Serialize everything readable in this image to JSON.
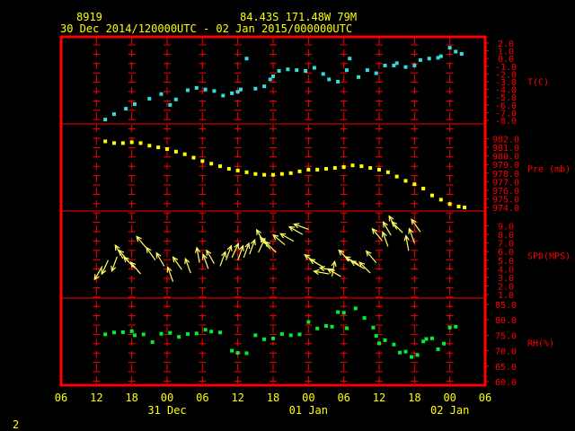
{
  "header": {
    "station_id": "8919",
    "location": "84.43S  171.48W    79M",
    "period": "30 Dec 2014/120000UTC - 02 Jan 2015/000000UTC"
  },
  "footer": {
    "page_number": "2"
  },
  "colors": {
    "background": "#000000",
    "frame": "#ff0000",
    "axis_text": "#ffff00",
    "panel_labels": "#ff0000",
    "temperature": "#33dddd",
    "pressure": "#ffff00",
    "wind": "#ffff66",
    "humidity": "#00ee33"
  },
  "chart_data": {
    "type": "multi-panel time series",
    "x_axis": {
      "unit": "hours since 30 Dec 2014 00 UTC (axis labelled in UTC hour)",
      "range": [
        6,
        78
      ],
      "tick_labels": [
        "06",
        "12",
        "18",
        "00",
        "06",
        "12",
        "18",
        "00",
        "06",
        "12",
        "18",
        "00",
        "06"
      ],
      "date_labels": [
        {
          "text": "31 Dec",
          "hour": 24
        },
        {
          "text": "01 Jan",
          "hour": 48
        },
        {
          "text": "02 Jan",
          "hour": 72
        }
      ],
      "grid": true
    },
    "panels": [
      {
        "key": "temperature",
        "label": "T(C)",
        "ylim": [
          -8,
          2
        ],
        "tick_labels": [
          "2.0",
          "1.0",
          "0.0",
          "-1.0",
          "-2.0",
          "-3.0",
          "-4.0",
          "-5.0",
          "-6.0",
          "-7.0",
          "-8.0"
        ],
        "points": [
          [
            13.5,
            -7.9
          ],
          [
            15,
            -7.2
          ],
          [
            17,
            -6.5
          ],
          [
            18.5,
            -5.9
          ],
          [
            21,
            -5.2
          ],
          [
            23,
            -4.6
          ],
          [
            24.5,
            -6.0
          ],
          [
            25.5,
            -5.3
          ],
          [
            27.5,
            -4.1
          ],
          [
            29,
            -3.8
          ],
          [
            30.5,
            -4.0
          ],
          [
            32,
            -4.2
          ],
          [
            33.5,
            -4.8
          ],
          [
            35,
            -4.5
          ],
          [
            36,
            -4.3
          ],
          [
            36.5,
            -4.0
          ],
          [
            37.5,
            0.0
          ],
          [
            39,
            -3.9
          ],
          [
            40.5,
            -3.6
          ],
          [
            41.5,
            -2.7
          ],
          [
            42,
            -2.3
          ],
          [
            43,
            -1.6
          ],
          [
            44.5,
            -1.4
          ],
          [
            46,
            -1.5
          ],
          [
            47.5,
            -1.6
          ],
          [
            49,
            -1.2
          ],
          [
            50.5,
            -2.0
          ],
          [
            51.5,
            -2.7
          ],
          [
            53,
            -3.0
          ],
          [
            54.5,
            -1.5
          ],
          [
            55,
            0.0
          ],
          [
            56.5,
            -2.4
          ],
          [
            58,
            -1.5
          ],
          [
            59.5,
            -1.9
          ],
          [
            61,
            -0.9
          ],
          [
            62.5,
            -0.9
          ],
          [
            63,
            -0.6
          ],
          [
            64.5,
            -1.1
          ],
          [
            66,
            -0.9
          ],
          [
            67,
            -0.2
          ],
          [
            68.5,
            0.0
          ],
          [
            70,
            0.1
          ],
          [
            70.5,
            0.3
          ],
          [
            72,
            1.4
          ],
          [
            73,
            0.9
          ],
          [
            74,
            0.6
          ]
        ]
      },
      {
        "key": "pressure",
        "label": "Pre (mb)",
        "ylim": [
          974,
          983
        ],
        "tick_labels": [
          "982.0",
          "981.0",
          "980.0",
          "979.0",
          "978.0",
          "977.0",
          "976.0",
          "975.0",
          "974.0"
        ],
        "points": [
          [
            13.5,
            981.7
          ],
          [
            15,
            981.5
          ],
          [
            16.5,
            981.5
          ],
          [
            18,
            981.6
          ],
          [
            19.5,
            981.5
          ],
          [
            21,
            981.2
          ],
          [
            22.5,
            981.0
          ],
          [
            24,
            980.8
          ],
          [
            25.5,
            980.5
          ],
          [
            27,
            980.2
          ],
          [
            28.5,
            979.8
          ],
          [
            30,
            979.4
          ],
          [
            31.5,
            979.1
          ],
          [
            33,
            978.8
          ],
          [
            34.5,
            978.5
          ],
          [
            36,
            978.3
          ],
          [
            37.5,
            978.1
          ],
          [
            39,
            977.9
          ],
          [
            40.5,
            977.8
          ],
          [
            42,
            977.8
          ],
          [
            43.5,
            977.9
          ],
          [
            45,
            978.0
          ],
          [
            46.5,
            978.2
          ],
          [
            48,
            978.4
          ],
          [
            49.5,
            978.4
          ],
          [
            51,
            978.5
          ],
          [
            52.5,
            978.6
          ],
          [
            54,
            978.7
          ],
          [
            55.5,
            978.9
          ],
          [
            57,
            978.8
          ],
          [
            58.5,
            978.6
          ],
          [
            60,
            978.4
          ],
          [
            61.5,
            978.1
          ],
          [
            63,
            977.6
          ],
          [
            64.5,
            977.1
          ],
          [
            66,
            976.7
          ],
          [
            67.5,
            976.2
          ],
          [
            69,
            975.4
          ],
          [
            70.5,
            974.9
          ],
          [
            72,
            974.4
          ],
          [
            73.5,
            974.1
          ],
          [
            74.5,
            974.0
          ]
        ]
      },
      {
        "key": "wind",
        "label": "SPD(MPS)",
        "ylim": [
          1,
          10
        ],
        "tick_labels": [
          "9.0",
          "8.0",
          "7.0",
          "6.0",
          "5.0",
          "4.0",
          "3.0",
          "2.0",
          "1.0"
        ],
        "points": [
          [
            13,
            4.3,
            210
          ],
          [
            14,
            5.0,
            205
          ],
          [
            15.5,
            5.4,
            200
          ],
          [
            16.5,
            5.2,
            330
          ],
          [
            17.5,
            4.8,
            320
          ],
          [
            18.5,
            4.1,
            315
          ],
          [
            19.5,
            3.4,
            320
          ],
          [
            20.5,
            6.4,
            320
          ],
          [
            22,
            5.0,
            325
          ],
          [
            23.5,
            4.3,
            330
          ],
          [
            25,
            2.5,
            340
          ],
          [
            26.5,
            3.9,
            325
          ],
          [
            28,
            3.5,
            340
          ],
          [
            29.5,
            4.7,
            350
          ],
          [
            31,
            4.0,
            340
          ],
          [
            32,
            4.6,
            330
          ],
          [
            33,
            4.3,
            20
          ],
          [
            34,
            5.0,
            20
          ],
          [
            35,
            5.3,
            25
          ],
          [
            36,
            5.0,
            20
          ],
          [
            37,
            5.3,
            20
          ],
          [
            38,
            5.7,
            20
          ],
          [
            39.5,
            5.9,
            25
          ],
          [
            40.5,
            7.0,
            330
          ],
          [
            41.5,
            6.3,
            320
          ],
          [
            42.5,
            5.9,
            315
          ],
          [
            44,
            6.8,
            310
          ],
          [
            45.5,
            7.2,
            300
          ],
          [
            47,
            8.0,
            300
          ],
          [
            48,
            8.6,
            290
          ],
          [
            49.5,
            4.6,
            305
          ],
          [
            50.5,
            4.2,
            300
          ],
          [
            51.5,
            3.4,
            280
          ],
          [
            52,
            3.1,
            10
          ],
          [
            52.5,
            3.8,
            280
          ],
          [
            53.5,
            3.1,
            300
          ],
          [
            55,
            4.9,
            315
          ],
          [
            56.5,
            4.5,
            300
          ],
          [
            57.5,
            4.0,
            300
          ],
          [
            58.5,
            3.5,
            315
          ],
          [
            59.5,
            4.7,
            320
          ],
          [
            60.5,
            7.3,
            320
          ],
          [
            61.5,
            6.6,
            340
          ],
          [
            62,
            7.9,
            330
          ],
          [
            63,
            8.6,
            330
          ],
          [
            64,
            8.2,
            315
          ],
          [
            65,
            6.1,
            350
          ],
          [
            66,
            7.0,
            340
          ],
          [
            67,
            8.3,
            325
          ]
        ]
      },
      {
        "key": "humidity",
        "label": "RH(%)",
        "ylim": [
          60,
          85
        ],
        "tick_labels": [
          "85.0",
          "80.0",
          "75.0",
          "70.0",
          "65.0",
          "60.0"
        ],
        "points": [
          [
            13.5,
            75.3
          ],
          [
            15,
            75.9
          ],
          [
            16.5,
            76.0
          ],
          [
            18,
            76.3
          ],
          [
            18.5,
            75.0
          ],
          [
            20,
            75.3
          ],
          [
            21.5,
            72.8
          ],
          [
            23,
            75.5
          ],
          [
            24.5,
            75.8
          ],
          [
            26,
            74.5
          ],
          [
            27.5,
            75.4
          ],
          [
            29,
            75.6
          ],
          [
            30.5,
            76.8
          ],
          [
            31.5,
            76.2
          ],
          [
            33,
            75.9
          ],
          [
            35,
            70.0
          ],
          [
            36,
            69.3
          ],
          [
            37.5,
            69.2
          ],
          [
            39,
            75.0
          ],
          [
            40.5,
            73.7
          ],
          [
            42,
            74.0
          ],
          [
            43.5,
            75.4
          ],
          [
            45,
            75.0
          ],
          [
            46.5,
            75.3
          ],
          [
            48,
            79.3
          ],
          [
            49.5,
            77.2
          ],
          [
            51,
            78.0
          ],
          [
            52,
            77.8
          ],
          [
            53,
            82.5
          ],
          [
            54,
            82.3
          ],
          [
            54.5,
            77.3
          ],
          [
            56,
            83.7
          ],
          [
            57.5,
            80.6
          ],
          [
            59,
            77.5
          ],
          [
            59.5,
            74.8
          ],
          [
            60,
            72.4
          ],
          [
            61,
            73.4
          ],
          [
            62.5,
            72.0
          ],
          [
            63.5,
            69.4
          ],
          [
            64.5,
            69.7
          ],
          [
            65.5,
            68.0
          ],
          [
            66.5,
            68.6
          ],
          [
            67.5,
            73.0
          ],
          [
            68,
            73.8
          ],
          [
            69,
            74.0
          ],
          [
            70,
            70.5
          ],
          [
            71,
            72.3
          ],
          [
            72,
            77.5
          ],
          [
            73,
            77.8
          ]
        ]
      }
    ]
  }
}
